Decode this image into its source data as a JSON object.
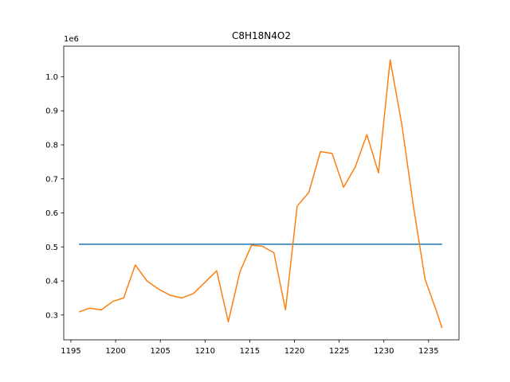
{
  "chart_data": {
    "type": "line",
    "title": "C8H18N4O2",
    "xlabel": "",
    "ylabel": "",
    "y_offset_label": "1e6",
    "xlim": [
      1194.2,
      1238.4
    ],
    "ylim": [
      227000,
      1090000
    ],
    "x_ticks": [
      1195,
      1200,
      1205,
      1210,
      1215,
      1220,
      1225,
      1230,
      1235
    ],
    "x_tick_labels": [
      "1195",
      "1200",
      "1205",
      "1210",
      "1215",
      "1220",
      "1225",
      "1230",
      "1235"
    ],
    "y_ticks": [
      300000,
      400000,
      500000,
      600000,
      700000,
      800000,
      900000,
      1000000
    ],
    "y_tick_labels": [
      "0.3",
      "0.4",
      "0.5",
      "0.6",
      "0.7",
      "0.8",
      "0.9",
      "1.0"
    ],
    "grid": false,
    "legend": "none",
    "series": [
      {
        "color": "#1f77b4",
        "x": [
          1195.9,
          1236.5
        ],
        "y": [
          508000,
          508000
        ]
      },
      {
        "color": "#ff7f0e",
        "x": [
          1195.9,
          1197.1,
          1198.4,
          1199.7,
          1200.9,
          1202.2,
          1203.5,
          1204.8,
          1206.1,
          1207.4,
          1208.7,
          1210.0,
          1211.3,
          1212.6,
          1213.9,
          1215.2,
          1216.4,
          1217.7,
          1219.0,
          1220.3,
          1221.6,
          1222.9,
          1224.2,
          1225.5,
          1226.8,
          1228.1,
          1229.4,
          1230.7,
          1232.0,
          1233.3,
          1234.6,
          1235.9,
          1236.5
        ],
        "y": [
          309000,
          320000,
          315000,
          340000,
          350000,
          447000,
          400000,
          376000,
          358000,
          350000,
          363000,
          396000,
          430000,
          280000,
          427000,
          505000,
          502000,
          483000,
          315000,
          620000,
          660000,
          780000,
          775000,
          675000,
          735000,
          830000,
          718000,
          1050000,
          860000,
          620000,
          405000,
          310000,
          262000
        ]
      }
    ]
  }
}
